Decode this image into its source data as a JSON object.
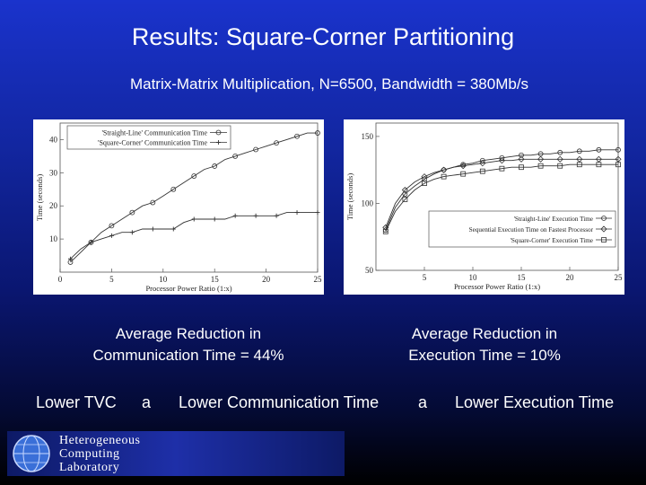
{
  "slide": {
    "title": "Results: Square-Corner Partitioning",
    "subtitle": "Matrix-Matrix Multiplication, N=6500, Bandwidth = 380Mb/s"
  },
  "stats": {
    "left_line1": "Average Reduction in",
    "left_line2": "Communication Time = 44%",
    "right_line1": "Average Reduction in",
    "right_line2": "Execution Time = 10%"
  },
  "chain": {
    "item1": "Lower TVC",
    "arrow": "a",
    "item2": "Lower Communication Time",
    "item3": "Lower Execution Time"
  },
  "logo": {
    "line1": "Heterogeneous",
    "line2": "Computing",
    "line3": "Laboratory"
  },
  "colors": {
    "background_top": "#1a33cc",
    "background_bottom": "#000000",
    "text": "#ffffff"
  },
  "chart_data": [
    {
      "type": "line",
      "xlabel": "Processor Power Ratio (1:x)",
      "ylabel": "Time (seconds)",
      "xlim": [
        0,
        25
      ],
      "ylim": [
        0,
        45
      ],
      "xticks": [
        0,
        5,
        10,
        15,
        20,
        25
      ],
      "yticks": [
        10,
        20,
        30,
        40
      ],
      "legend_position": "top-left",
      "grid": false,
      "series": [
        {
          "name": "'Straight-Line' Communication Time",
          "marker": "circle",
          "x": [
            1,
            2,
            3,
            4,
            5,
            6,
            7,
            8,
            9,
            10,
            11,
            12,
            13,
            14,
            15,
            16,
            17,
            18,
            19,
            20,
            21,
            22,
            23,
            24,
            25
          ],
          "y": [
            3,
            6,
            9,
            12,
            14,
            16,
            18,
            20,
            21,
            23,
            25,
            27,
            29,
            31,
            32,
            34,
            35,
            36,
            37,
            38,
            39,
            40,
            41,
            42,
            42
          ]
        },
        {
          "name": "'Square-Corner' Communication Time",
          "marker": "plus",
          "x": [
            1,
            2,
            3,
            4,
            5,
            6,
            7,
            8,
            9,
            10,
            11,
            12,
            13,
            14,
            15,
            16,
            17,
            18,
            19,
            20,
            21,
            22,
            23,
            24,
            25
          ],
          "y": [
            4,
            7,
            9,
            10,
            11,
            12,
            12,
            13,
            13,
            13,
            13,
            15,
            16,
            16,
            16,
            16,
            17,
            17,
            17,
            17,
            17,
            18,
            18,
            18,
            18
          ]
        }
      ]
    },
    {
      "type": "line",
      "xlabel": "Processor Power Ratio (1:x)",
      "ylabel": "Time (seconds)",
      "xlim": [
        0,
        25
      ],
      "ylim": [
        50,
        160
      ],
      "xticks": [
        5,
        10,
        15,
        20,
        25
      ],
      "yticks": [
        50,
        100,
        150
      ],
      "legend_position": "bottom-right",
      "grid": false,
      "series": [
        {
          "name": "'Straight-Line' Execution Time",
          "marker": "circle",
          "x": [
            1,
            2,
            3,
            4,
            5,
            6,
            7,
            8,
            9,
            10,
            11,
            12,
            13,
            14,
            15,
            16,
            17,
            18,
            19,
            20,
            21,
            22,
            23,
            24,
            25
          ],
          "y": [
            80,
            97,
            107,
            113,
            118,
            122,
            125,
            127,
            129,
            130,
            132,
            133,
            134,
            135,
            136,
            136,
            137,
            137,
            138,
            138,
            139,
            139,
            140,
            140,
            140
          ]
        },
        {
          "name": "Sequential Execution Time on Fastest Processor",
          "marker": "diamond",
          "x": [
            1,
            2,
            3,
            4,
            5,
            6,
            7,
            8,
            9,
            10,
            11,
            12,
            13,
            14,
            15,
            16,
            17,
            18,
            19,
            20,
            21,
            22,
            23,
            24,
            25
          ],
          "y": [
            82,
            100,
            110,
            116,
            120,
            123,
            125,
            127,
            128,
            129,
            130,
            131,
            132,
            132,
            133,
            133,
            133,
            133,
            133,
            133,
            133,
            133,
            133,
            133,
            133
          ]
        },
        {
          "name": "'Square-Corner' Execution Time",
          "marker": "square",
          "x": [
            1,
            2,
            3,
            4,
            5,
            6,
            7,
            8,
            9,
            10,
            11,
            12,
            13,
            14,
            15,
            16,
            17,
            18,
            19,
            20,
            21,
            22,
            23,
            24,
            25
          ],
          "y": [
            79,
            94,
            103,
            110,
            115,
            118,
            120,
            121,
            122,
            123,
            124,
            125,
            126,
            127,
            127,
            127,
            128,
            128,
            128,
            129,
            129,
            129,
            129,
            129,
            129
          ]
        }
      ]
    }
  ]
}
